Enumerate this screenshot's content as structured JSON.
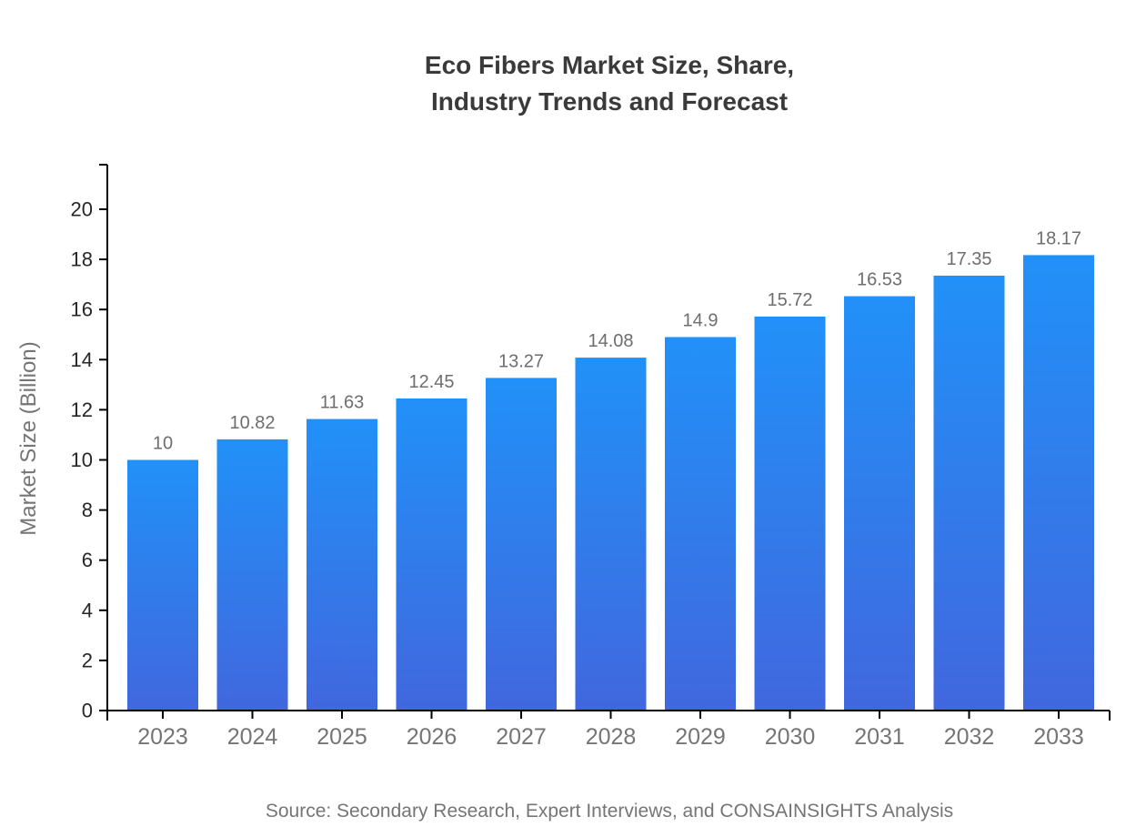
{
  "title_lines": [
    "Eco Fibers Market Size, Share,",
    "Industry Trends and Forecast"
  ],
  "source_text": "Source: Secondary Research, Expert Interviews, and CONSAINSIGHTS Analysis",
  "chart_data": {
    "type": "bar",
    "title": "Eco Fibers Market Size, Share, Industry Trends and Forecast",
    "categories": [
      "2023",
      "2024",
      "2025",
      "2026",
      "2027",
      "2028",
      "2029",
      "2030",
      "2031",
      "2032",
      "2033"
    ],
    "values": [
      10,
      10.82,
      11.63,
      12.45,
      13.27,
      14.08,
      14.9,
      15.72,
      16.53,
      17.35,
      18.17
    ],
    "value_labels": [
      "10",
      "10.82",
      "11.63",
      "12.45",
      "13.27",
      "14.08",
      "14.9",
      "15.72",
      "16.53",
      "17.35",
      "18.17"
    ],
    "xlabel": "",
    "ylabel": "Market Size (Billion)",
    "ylim": [
      0,
      20
    ],
    "yticks": [
      0,
      2,
      4,
      6,
      8,
      10,
      12,
      14,
      16,
      18,
      20
    ],
    "grid": false,
    "legend": "none",
    "colors": {
      "bar_gradient_top": "#2191f8",
      "bar_gradient_bottom": "#4167de",
      "axis_line": "#000000",
      "ytick_label": "#262626",
      "xtick_label": "#757575",
      "value_label": "#6e6e6e",
      "title": "#3a3a3a",
      "muted_text": "#757575"
    }
  }
}
